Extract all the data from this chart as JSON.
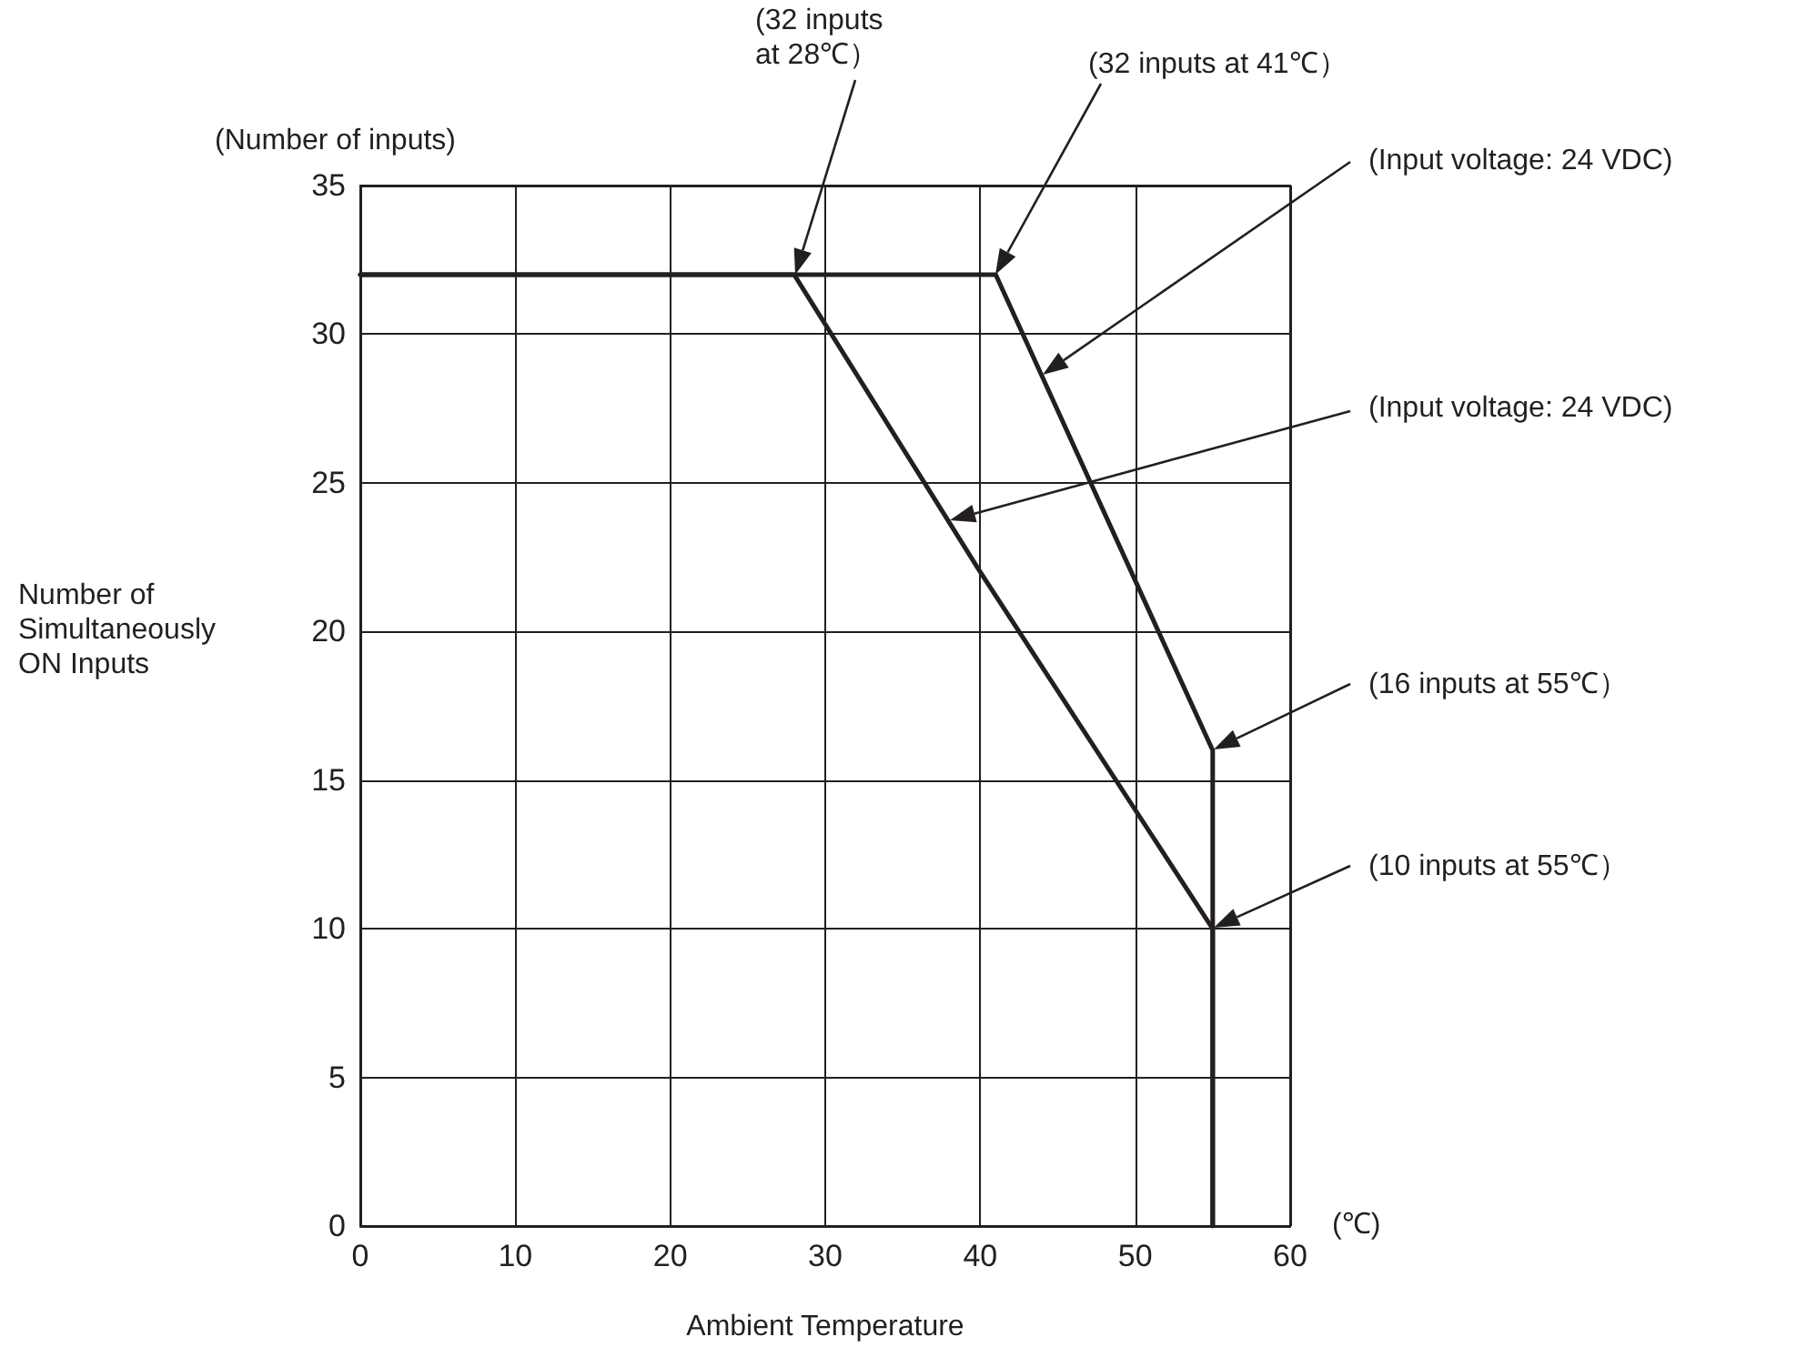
{
  "chart_data": {
    "type": "line",
    "xlabel": "Ambient Temperature",
    "ylabel": "Number of\nSimultaneously\nON Inputs",
    "xlim": [
      0,
      60
    ],
    "xticks": [
      0,
      10,
      20,
      30,
      40,
      50,
      60
    ],
    "ylim": [
      0,
      35
    ],
    "yticks": [
      0,
      5,
      10,
      15,
      20,
      25,
      30,
      35
    ],
    "grid": true,
    "marker": "none",
    "line_style": "solid",
    "series": [
      {
        "color": "#231f20",
        "x": [
          0,
          41,
          55,
          55
        ],
        "values": [
          32,
          32,
          16,
          0
        ]
      },
      {
        "color": "#231f20",
        "x": [
          0,
          28,
          40,
          55,
          55
        ],
        "values": [
          32,
          32,
          22,
          10,
          0
        ]
      }
    ],
    "annotations": [
      "(Number of inputs)",
      "(℃)",
      "(32 inputs\nat 28℃）",
      "(32 inputs at 41℃）",
      "(Input voltage: 24 VDC)",
      "(Input voltage: 24 VDC)",
      "(16 inputs at 55℃）",
      "(10 inputs at 55℃）"
    ]
  }
}
